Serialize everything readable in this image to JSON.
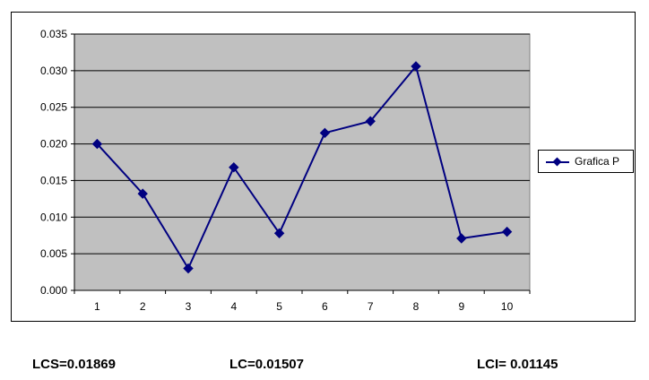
{
  "chart_data": {
    "type": "line",
    "title": "",
    "xlabel": "",
    "ylabel": "",
    "categories": [
      "1",
      "2",
      "3",
      "4",
      "5",
      "6",
      "7",
      "8",
      "9",
      "10"
    ],
    "series": [
      {
        "name": "Grafica P",
        "values": [
          0.02,
          0.0132,
          0.003,
          0.0168,
          0.0078,
          0.0215,
          0.0231,
          0.0306,
          0.0071,
          0.008
        ],
        "color": "#000080",
        "marker": "diamond"
      }
    ],
    "ylim": [
      0.0,
      0.035
    ],
    "yticks": [
      "0.000",
      "0.005",
      "0.010",
      "0.015",
      "0.020",
      "0.025",
      "0.030",
      "0.035"
    ],
    "grid": "horizontal",
    "plot_background": "#c0c0c0",
    "legend": "right"
  },
  "limits": {
    "lcs": "LCS=0.01869",
    "lc": "LC=0.01507",
    "lci": "LCI= 0.01145"
  }
}
